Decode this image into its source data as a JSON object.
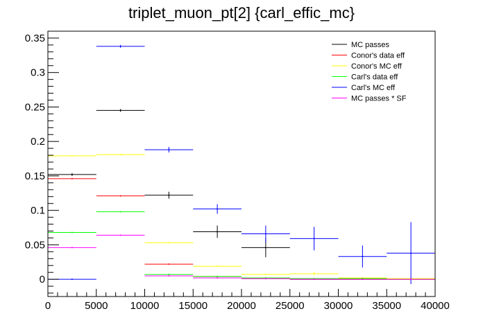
{
  "chart_data": {
    "type": "line",
    "title": "triplet_muon_pt[2]  {carl_effic_mc}",
    "xlabel": "",
    "ylabel": "",
    "xlim": [
      0,
      40000
    ],
    "ylim": [
      -0.025,
      0.36
    ],
    "grid": false,
    "legend_position": "top-right",
    "x_ticks": [
      {
        "value": 0,
        "label": "0"
      },
      {
        "value": 5000,
        "label": "5000"
      },
      {
        "value": 10000,
        "label": "10000"
      },
      {
        "value": 15000,
        "label": "15000"
      },
      {
        "value": 20000,
        "label": "20000"
      },
      {
        "value": 25000,
        "label": "25000"
      },
      {
        "value": 30000,
        "label": "30000"
      },
      {
        "value": 35000,
        "label": "35000"
      },
      {
        "value": 40000,
        "label": "40000"
      }
    ],
    "y_ticks": [
      {
        "value": 0,
        "label": "0"
      },
      {
        "value": 0.05,
        "label": "0.05"
      },
      {
        "value": 0.1,
        "label": "0.1"
      },
      {
        "value": 0.15,
        "label": "0.15"
      },
      {
        "value": 0.2,
        "label": "0.2"
      },
      {
        "value": 0.25,
        "label": "0.25"
      },
      {
        "value": 0.3,
        "label": "0.3"
      },
      {
        "value": 0.35,
        "label": "0.35"
      }
    ],
    "bin_edges": [
      0,
      5000,
      10000,
      15000,
      20000,
      25000,
      30000,
      35000,
      40000
    ],
    "series": [
      {
        "name": "MC passes",
        "color": "#000000",
        "values": [
          0.152,
          0.245,
          0.122,
          0.069,
          0.046,
          0,
          0,
          0
        ],
        "errors": [
          0.002,
          0.002,
          0.005,
          0.009,
          0.014,
          0,
          0,
          0
        ]
      },
      {
        "name": "Conor's data eff",
        "color": "#ff0000",
        "values": [
          0.146,
          0.121,
          0.022,
          0.004,
          0.001,
          0,
          0,
          0
        ],
        "errors": [
          0,
          0,
          0,
          0,
          0,
          0,
          0,
          0
        ]
      },
      {
        "name": "Conor's MC eff",
        "color": "#ffff00",
        "values": [
          0.179,
          0.181,
          0.053,
          0.019,
          0.007,
          0.008,
          0.002,
          0.001
        ],
        "errors": [
          0,
          0,
          0,
          0,
          0,
          0.002,
          0,
          0
        ]
      },
      {
        "name": "Carl's data eff",
        "color": "#00ff00",
        "values": [
          0.068,
          0.098,
          0.007,
          0.004,
          0.002,
          0.001,
          0.001,
          0
        ],
        "errors": [
          0,
          0,
          0,
          0,
          0,
          0,
          0,
          0
        ]
      },
      {
        "name": "Carl's MC eff",
        "color": "#0000ff",
        "values": [
          0,
          0.338,
          0.188,
          0.102,
          0.066,
          0.059,
          0.033,
          0.038
        ],
        "errors": [
          0,
          0.002,
          0.004,
          0.007,
          0.012,
          0.017,
          0.016,
          0.045
        ]
      },
      {
        "name": "MC passes * SF",
        "color": "#ff00ff",
        "values": [
          0.046,
          0.064,
          0.005,
          0.002,
          0.001,
          0,
          0,
          0
        ],
        "errors": [
          0,
          0,
          0,
          0,
          0,
          0,
          0,
          0
        ]
      }
    ]
  }
}
